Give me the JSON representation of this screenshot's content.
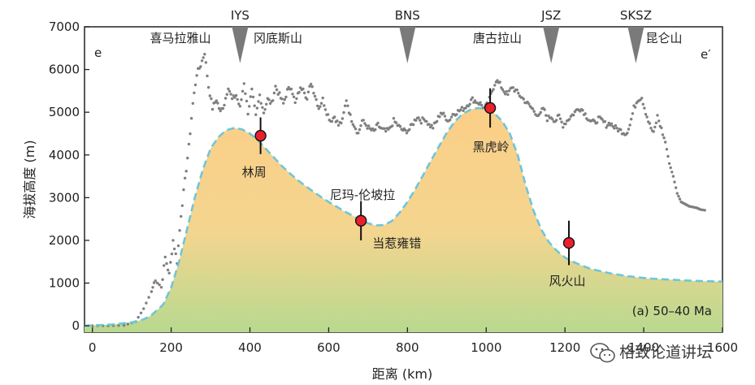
{
  "chart_data": {
    "type": "line",
    "panel_label": "(a) 50–40 Ma",
    "xlabel": "距离 (km)",
    "ylabel": "海拔高度 (m)",
    "xlim": [
      -20,
      1600
    ],
    "ylim": [
      -150,
      7000
    ],
    "x_ticks": [
      0,
      200,
      400,
      600,
      800,
      1000,
      1200,
      1400,
      1600
    ],
    "x_tick_labels": [
      "0",
      "200",
      "400",
      "600",
      "800",
      "1000",
      "1200",
      "1400",
      "1600"
    ],
    "y_ticks": [
      0,
      1000,
      2000,
      3000,
      4000,
      5000,
      6000,
      7000
    ],
    "y_tick_labels": [
      "0",
      "1000",
      "2000",
      "3000",
      "4000",
      "5000",
      "6000",
      "7000"
    ],
    "profile_ends": {
      "left": "e",
      "right": "e′"
    },
    "modern_topography": {
      "name": "modern elevation (dotted)",
      "color": "#7f7f7f",
      "x": [
        0,
        40,
        80,
        110,
        130,
        150,
        160,
        175,
        185,
        195,
        205,
        215,
        225,
        235,
        245,
        255,
        265,
        275,
        285,
        295,
        305,
        315,
        325,
        335,
        345,
        355,
        365,
        375,
        385,
        395,
        405,
        415,
        425,
        435,
        445,
        455,
        465,
        475,
        485,
        495,
        505,
        515,
        525,
        535,
        545,
        555,
        565,
        575,
        585,
        595,
        605,
        615,
        625,
        635,
        645,
        655,
        665,
        675,
        685,
        695,
        705,
        715,
        725,
        735,
        745,
        755,
        765,
        775,
        785,
        795,
        805,
        815,
        825,
        835,
        845,
        855,
        865,
        875,
        885,
        895,
        905,
        915,
        925,
        935,
        945,
        955,
        965,
        975,
        985,
        995,
        1005,
        1015,
        1025,
        1035,
        1045,
        1055,
        1065,
        1075,
        1085,
        1095,
        1105,
        1115,
        1125,
        1135,
        1145,
        1155,
        1165,
        1175,
        1185,
        1195,
        1205,
        1215,
        1225,
        1235,
        1245,
        1255,
        1265,
        1275,
        1285,
        1295,
        1305,
        1315,
        1325,
        1335,
        1345,
        1355,
        1365,
        1375,
        1385,
        1395,
        1405,
        1415,
        1425,
        1435,
        1445,
        1455,
        1465,
        1475,
        1485,
        1495,
        1505,
        1515,
        1525,
        1535,
        1545,
        1560
      ],
      "y": [
        0,
        0,
        10,
        100,
        400,
        800,
        1100,
        900,
        1600,
        1200,
        2000,
        1500,
        2600,
        3400,
        4200,
        5200,
        5900,
        6100,
        6400,
        5600,
        5100,
        5300,
        5000,
        5200,
        5600,
        5300,
        5400,
        5100,
        5700,
        5000,
        5500,
        4900,
        5400,
        5000,
        5300,
        5200,
        5600,
        5400,
        5200,
        5500,
        5600,
        5200,
        5500,
        5600,
        5300,
        5700,
        5400,
        5100,
        5300,
        5000,
        4800,
        4900,
        4700,
        4800,
        5300,
        4900,
        4700,
        4500,
        4800,
        4700,
        4600,
        4550,
        4700,
        4600,
        4550,
        4600,
        4800,
        4700,
        4600,
        4550,
        4600,
        4750,
        4900,
        4800,
        4850,
        4700,
        4650,
        4800,
        5000,
        4900,
        4800,
        4950,
        5000,
        5050,
        5100,
        5200,
        5300,
        5250,
        5200,
        5100,
        5200,
        5500,
        5750,
        5650,
        5500,
        5400,
        5600,
        5500,
        5400,
        5300,
        5200,
        5100,
        5000,
        4900,
        5100,
        4850,
        4900,
        4800,
        4900,
        4700,
        4800,
        4900,
        5000,
        5100,
        5050,
        4900,
        4800,
        4750,
        4850,
        4800,
        4700,
        4750,
        4650,
        4600,
        4550,
        4500,
        4700,
        5100,
        5300,
        5350,
        5000,
        4700,
        4500,
        4900,
        4600,
        4300,
        3800,
        3500,
        3100,
        2900,
        2850,
        2800,
        2780,
        2760,
        2720,
        2700
      ]
    },
    "paleo_elevation": {
      "name": "50–40 Ma paleo-elevation (dashed, filled)",
      "color": "#6ec6d9",
      "fill_top": "#fbd089",
      "fill_bottom": "#b8d98f",
      "x": [
        -20,
        50,
        100,
        130,
        150,
        180,
        200,
        220,
        240,
        260,
        280,
        300,
        320,
        340,
        360,
        380,
        400,
        420,
        440,
        460,
        480,
        500,
        520,
        540,
        560,
        580,
        600,
        620,
        640,
        660,
        680,
        700,
        720,
        740,
        760,
        780,
        800,
        820,
        840,
        860,
        880,
        900,
        920,
        940,
        960,
        980,
        1000,
        1020,
        1040,
        1060,
        1080,
        1100,
        1120,
        1140,
        1160,
        1180,
        1200,
        1220,
        1240,
        1260,
        1280,
        1300,
        1320,
        1340,
        1360,
        1380,
        1400,
        1420,
        1440,
        1460,
        1480,
        1500,
        1520,
        1540,
        1560,
        1580,
        1600
      ],
      "y": [
        0,
        30,
        80,
        150,
        250,
        500,
        900,
        1500,
        2250,
        3000,
        3650,
        4150,
        4420,
        4580,
        4630,
        4600,
        4500,
        4350,
        4150,
        3950,
        3750,
        3580,
        3420,
        3280,
        3150,
        3020,
        2900,
        2790,
        2680,
        2580,
        2480,
        2400,
        2350,
        2360,
        2450,
        2650,
        2900,
        3200,
        3530,
        3870,
        4200,
        4520,
        4780,
        4960,
        5060,
        5100,
        5080,
        4980,
        4800,
        4500,
        4000,
        3300,
        2700,
        2250,
        1950,
        1750,
        1600,
        1500,
        1420,
        1350,
        1300,
        1260,
        1220,
        1190,
        1160,
        1140,
        1120,
        1105,
        1095,
        1085,
        1075,
        1065,
        1055,
        1050,
        1045,
        1040,
        1035
      ]
    },
    "sample_points": [
      {
        "label": "林周",
        "x": 427,
        "y": 4450,
        "err": 430
      },
      {
        "label": "当惹雍错",
        "x": 682,
        "y": 2460,
        "err": 460
      },
      {
        "label": "黑虎岭",
        "x": 1010,
        "y": 5100,
        "err": 460
      },
      {
        "label": "风火山",
        "x": 1210,
        "y": 1940,
        "err": 520
      }
    ],
    "point_color": "#e8212b",
    "sutures": [
      {
        "label": "IYS",
        "x": 375
      },
      {
        "label": "BNS",
        "x": 800
      },
      {
        "label": "JSZ",
        "x": 1165
      },
      {
        "label": "SKSZ",
        "x": 1380
      }
    ],
    "terrane_labels": [
      "喜马拉雅山",
      "冈底斯山",
      "唐古拉山",
      "昆仑山"
    ],
    "region_labels": [
      "尼玛-伦坡拉"
    ]
  },
  "watermark": {
    "icon": "wechat-icon",
    "text": "格致论道讲坛"
  }
}
